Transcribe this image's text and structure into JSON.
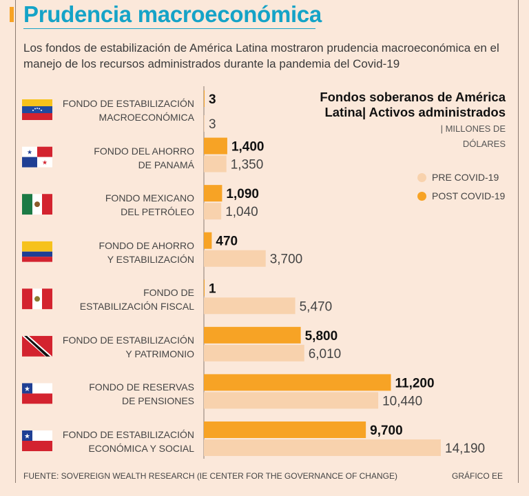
{
  "header": {
    "title": "Prudencia macroeconómica",
    "subtitle": "Los fondos de estabilización de América Latina mostraron prudencia macroeconómica en el manejo de los recursos administrados durante la pandemia del Covid-19"
  },
  "chart_data": {
    "type": "bar",
    "orientation": "horizontal",
    "title": "Fondos soberanos de América Latina| Activos administrados",
    "unit_label": "| MILLONES DE",
    "unit_label_2": "DÓLARES",
    "categories": [
      [
        "FONDO DE ESTABILIZACIÓN",
        "MACROECONÓMICA"
      ],
      [
        "FONDO DEL AHORRO",
        "DE PANAMÁ"
      ],
      [
        "FONDO MEXICANO",
        "DEL PETRÓLEO"
      ],
      [
        "FONDO DE AHORRO",
        "Y ESTABILIZACIÓN"
      ],
      [
        "FONDO DE",
        "ESTABILIZACIÓN FISCAL"
      ],
      [
        "FONDO DE ESTABILIZACIÓN",
        "Y PATRIMONIO"
      ],
      [
        "FONDO DE RESERVAS",
        "DE PENSIONES"
      ],
      [
        "FONDO DE ESTABILIZACIÓN",
        "ECONÓMICA Y SOCIAL"
      ]
    ],
    "flags": [
      "venezuela",
      "panama",
      "mexico",
      "colombia",
      "peru",
      "trinidad-and-tobago",
      "chile",
      "chile"
    ],
    "series": [
      {
        "name": "POST COVID-19",
        "color": "#f7a325",
        "values": [
          3,
          1400,
          1090,
          470,
          1,
          5800,
          11200,
          9700
        ],
        "labels": [
          "3",
          "1,400",
          "1,090",
          "470",
          "1",
          "5,800",
          "11,200",
          "9,700"
        ]
      },
      {
        "name": "PRE COVID-19",
        "color": "#f8d2ad",
        "values": [
          3,
          1350,
          1040,
          3700,
          5470,
          6010,
          10440,
          14190
        ],
        "labels": [
          "3",
          "1,350",
          "1,040",
          "3,700",
          "5,470",
          "6,010",
          "10,440",
          "14,190"
        ]
      }
    ],
    "legend": [
      {
        "label": "PRE COVID-19",
        "color": "#f8d2ad"
      },
      {
        "label": "POST COVID-19",
        "color": "#f7a325"
      }
    ],
    "legend_position": "top-right",
    "xlim": [
      0,
      14190
    ]
  },
  "footer": {
    "source": "FUENTE: SOVEREIGN WEALTH RESEARCH (IE CENTER FOR THE GOVERNANCE OF CHANGE)",
    "credit": "GRÁFICO EE"
  }
}
